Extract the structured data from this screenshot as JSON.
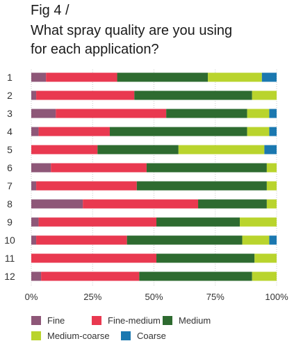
{
  "figure": {
    "label": "Fig 4 /",
    "title_lines": [
      "What spray quality are you using",
      "for each application?"
    ]
  },
  "chart_data": {
    "type": "bar",
    "orientation": "horizontal",
    "stacked": true,
    "categories": [
      "1",
      "2",
      "3",
      "4",
      "5",
      "6",
      "7",
      "8",
      "9",
      "10",
      "11",
      "12"
    ],
    "x_ticks": [
      "0%",
      "25%",
      "50%",
      "75%",
      "100%"
    ],
    "xlim": [
      0,
      100
    ],
    "grid": true,
    "legend_position": "bottom",
    "series": [
      {
        "name": "Fine",
        "color": "#8e5778",
        "values": [
          6,
          2,
          10,
          3,
          0,
          8,
          2,
          21,
          3,
          2,
          0,
          4
        ]
      },
      {
        "name": "Fine-medium",
        "color": "#e93950",
        "values": [
          29,
          40,
          45,
          29,
          27,
          39,
          41,
          47,
          48,
          37,
          51,
          40
        ]
      },
      {
        "name": "Medium",
        "color": "#2e6b30",
        "values": [
          37,
          48,
          33,
          56,
          33,
          49,
          53,
          28,
          34,
          47,
          40,
          46
        ]
      },
      {
        "name": "Medium-coarse",
        "color": "#b9d42d",
        "values": [
          22,
          10,
          9,
          9,
          35,
          4,
          4,
          4,
          15,
          11,
          9,
          10
        ]
      },
      {
        "name": "Coarse",
        "color": "#1b78b0",
        "values": [
          6,
          0,
          3,
          3,
          5,
          0,
          0,
          0,
          0,
          3,
          0,
          0
        ]
      }
    ]
  }
}
